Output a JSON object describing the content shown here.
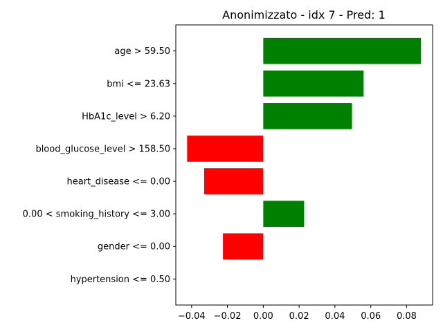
{
  "chart_data": {
    "type": "bar",
    "orientation": "horizontal",
    "title": "Anonimizzato - idx 7 - Pred: 1",
    "xlabel": "",
    "ylabel": "",
    "categories": [
      "age > 59.50",
      "bmi <= 23.63",
      "HbA1c_level > 6.20",
      "blood_glucose_level > 158.50",
      "heart_disease <= 0.00",
      "0.00 < smoking_history <= 3.00",
      "gender <= 0.00",
      "hypertension <= 0.50"
    ],
    "values": [
      0.088,
      0.056,
      0.0495,
      -0.0425,
      -0.033,
      0.0228,
      -0.0225,
      0.0
    ],
    "xlim": [
      -0.0488,
      0.0945
    ],
    "xticks": [
      -0.04,
      -0.02,
      0.0,
      0.02,
      0.04,
      0.06,
      0.08
    ],
    "xtick_labels": [
      "−0.04",
      "−0.02",
      "0.00",
      "0.02",
      "0.04",
      "0.06",
      "0.08"
    ],
    "positive_color": "#008000",
    "negative_color": "#ff0000",
    "grid": false,
    "legend": "none"
  }
}
